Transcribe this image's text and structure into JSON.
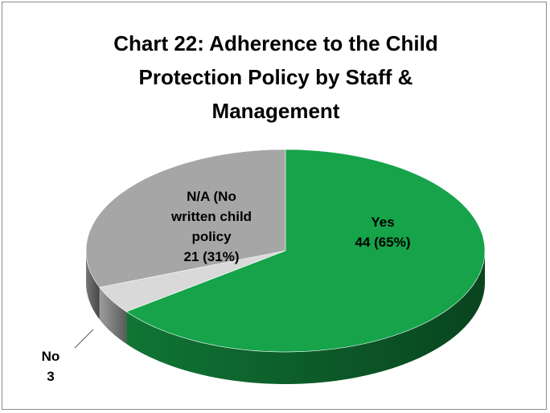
{
  "chart_data": {
    "type": "pie",
    "title_lines": [
      "Chart 22: Adherence to the Child",
      "Protection Policy by Staff &",
      "Management"
    ],
    "slices": [
      {
        "label_lines": [
          "Yes",
          "44 (65%)"
        ],
        "value": 44,
        "percent": 65,
        "color": "#16a34a"
      },
      {
        "label_lines": [
          "No",
          "3"
        ],
        "value": 3,
        "percent": 4,
        "color": "#d9d9d9"
      },
      {
        "label_lines": [
          "N/A (No",
          "written child",
          "policy",
          "21 (31%)"
        ],
        "value": 21,
        "percent": 31,
        "color": "#a6a6a6"
      }
    ],
    "legend": "none",
    "style": "3d"
  }
}
